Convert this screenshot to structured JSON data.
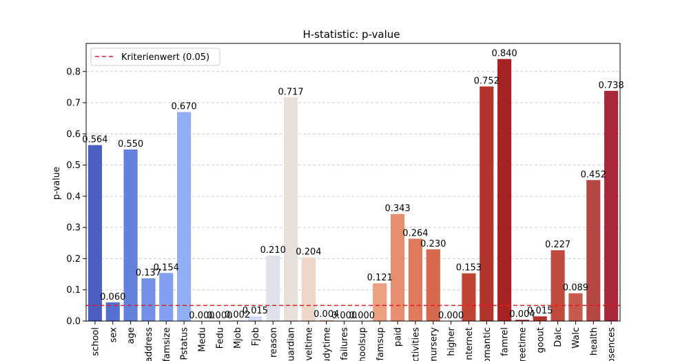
{
  "chart_data": {
    "type": "bar",
    "title": "H-statistic:  p-value",
    "xlabel": "",
    "ylabel": "p-value",
    "ylim": [
      0,
      0.89
    ],
    "yticks": [
      0.0,
      0.1,
      0.2,
      0.3,
      0.4,
      0.5,
      0.6,
      0.7,
      0.8
    ],
    "grid": "y-dashed",
    "legend_position": "top-left",
    "reference_line": {
      "label": "Kriterienwert (0.05)",
      "value": 0.05,
      "color": "#e31a1c"
    },
    "categories": [
      "school",
      "sex",
      "age",
      "address",
      "famsize",
      "Pstatus",
      "Medu",
      "Fedu",
      "Mjob",
      "Fjob",
      "reason",
      "guardian",
      "traveltime",
      "studytime",
      "failures",
      "schoolsup",
      "famsup",
      "paid",
      "activities",
      "nursery",
      "higher",
      "internet",
      "romantic",
      "famrel",
      "freetime",
      "goout",
      "Dalc",
      "Walc",
      "health",
      "absences"
    ],
    "values": [
      0.564,
      0.06,
      0.55,
      0.137,
      0.154,
      0.67,
      0.0,
      0.0,
      0.002,
      0.015,
      0.21,
      0.717,
      0.204,
      0.004,
      0.0,
      0.0,
      0.121,
      0.343,
      0.264,
      0.23,
      0.0,
      0.153,
      0.752,
      0.84,
      0.004,
      0.015,
      0.227,
      0.089,
      0.452,
      0.738
    ],
    "labels": [
      "0.564",
      "0.060",
      "0.550",
      "0.137",
      "0.154",
      "0.670",
      "0.000",
      "0.000",
      "0.002",
      "0.015",
      "0.210",
      "0.717",
      "0.204",
      "0.004",
      "0.000",
      "0.000",
      "0.121",
      "0.343",
      "0.264",
      "0.230",
      "0.000",
      "0.153",
      "0.752",
      "0.840",
      "0.004",
      "0.015",
      "0.227",
      "0.089",
      "0.452",
      "0.738"
    ],
    "colors": [
      "#4a5fc1",
      "#5470d0",
      "#6380dc",
      "#7290e6",
      "#82a0ef",
      "#92aef5",
      "#a3bbf8",
      "#b3c8fa",
      "#c3d2f7",
      "#d2dbf2",
      "#dfe0ea",
      "#e9dfda",
      "#eed7c9",
      "#f1cdb7",
      "#f1bfa4",
      "#efb091",
      "#eba07f",
      "#e68e6d",
      "#df7b5c",
      "#d6684d",
      "#cc5640",
      "#c04434",
      "#b3342a",
      "#a52422",
      "#9f1d23",
      "#b2322d",
      "#c04a3e",
      "#c85a4d",
      "#b64745",
      "#a8283a"
    ]
  }
}
